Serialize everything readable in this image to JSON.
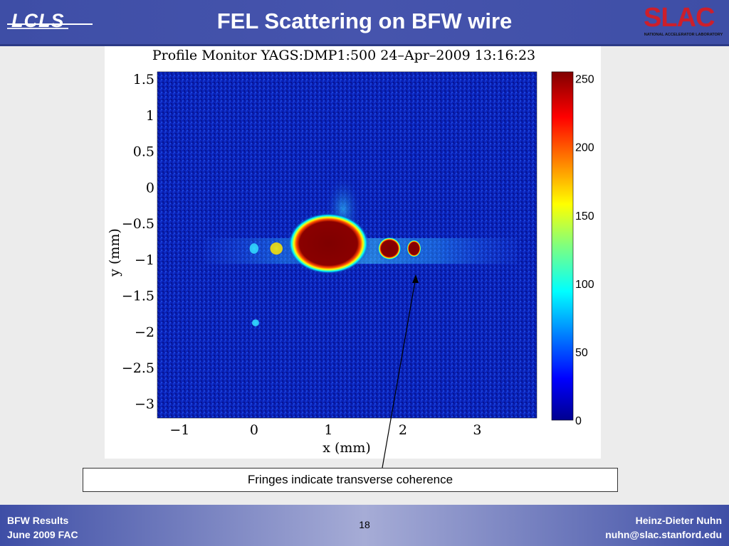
{
  "slide": {
    "title": "FEL Scattering on BFW wire",
    "page_number": "18",
    "caption": "Fringes indicate transverse coherence"
  },
  "logos": {
    "left_text": "LCLS",
    "right_text": "SLAC",
    "right_subtext": "NATIONAL ACCELERATOR LABORATORY"
  },
  "footer": {
    "left_line1": "BFW Results",
    "left_line2": "June 2009 FAC",
    "right_line1": "Heinz-Dieter Nuhn",
    "right_line2": "nuhn@slac.stanford.edu"
  },
  "colors": {
    "header_blue": "#3e4ea6",
    "image_background": "#0a1fb0",
    "saturated_core": "#7f0000"
  },
  "chart_data": {
    "type": "heatmap",
    "title": "Profile Monitor YAGS:DMP1:500 24–Apr–2009 13:16:23",
    "xlabel": "x  (mm)",
    "ylabel": "y  (mm)",
    "xlim": [
      -1.3,
      3.8
    ],
    "ylim": [
      -3.2,
      1.6
    ],
    "x_ticks": [
      -1,
      0,
      1,
      2,
      3
    ],
    "x_tick_labels": [
      "−1",
      "0",
      "1",
      "2",
      "3"
    ],
    "y_ticks": [
      1.5,
      1,
      0.5,
      0,
      -0.5,
      -1,
      -1.5,
      -2,
      -2.5,
      -3
    ],
    "y_tick_labels": [
      "1.5",
      "1",
      "0.5",
      "0",
      "−0.5",
      "−1",
      "−1.5",
      "−2",
      "−2.5",
      "−3"
    ],
    "colorbar": {
      "min": 0,
      "max": 255,
      "ticks": [
        0,
        50,
        100,
        150,
        200,
        250
      ],
      "tick_labels": [
        "0",
        "50",
        "100",
        "150",
        "200",
        "250"
      ]
    },
    "colormap": "jet",
    "features": [
      {
        "kind": "main_spot",
        "x": 1.0,
        "y": -0.78,
        "rx": 0.45,
        "ry": 0.35,
        "value": 255
      },
      {
        "kind": "fringe",
        "x": 1.82,
        "y": -0.85,
        "rx": 0.13,
        "ry": 0.13,
        "value": 250
      },
      {
        "kind": "fringe",
        "x": 2.15,
        "y": -0.85,
        "rx": 0.08,
        "ry": 0.1,
        "value": 230
      },
      {
        "kind": "fringe",
        "x": 0.3,
        "y": -0.85,
        "rx": 0.07,
        "ry": 0.07,
        "value": 150
      },
      {
        "kind": "fringe",
        "x": 0.0,
        "y": -0.85,
        "rx": 0.05,
        "ry": 0.06,
        "value": 130
      },
      {
        "kind": "stray_spot",
        "x": 0.02,
        "y": -1.88,
        "rx": 0.04,
        "ry": 0.04,
        "value": 90
      }
    ]
  }
}
